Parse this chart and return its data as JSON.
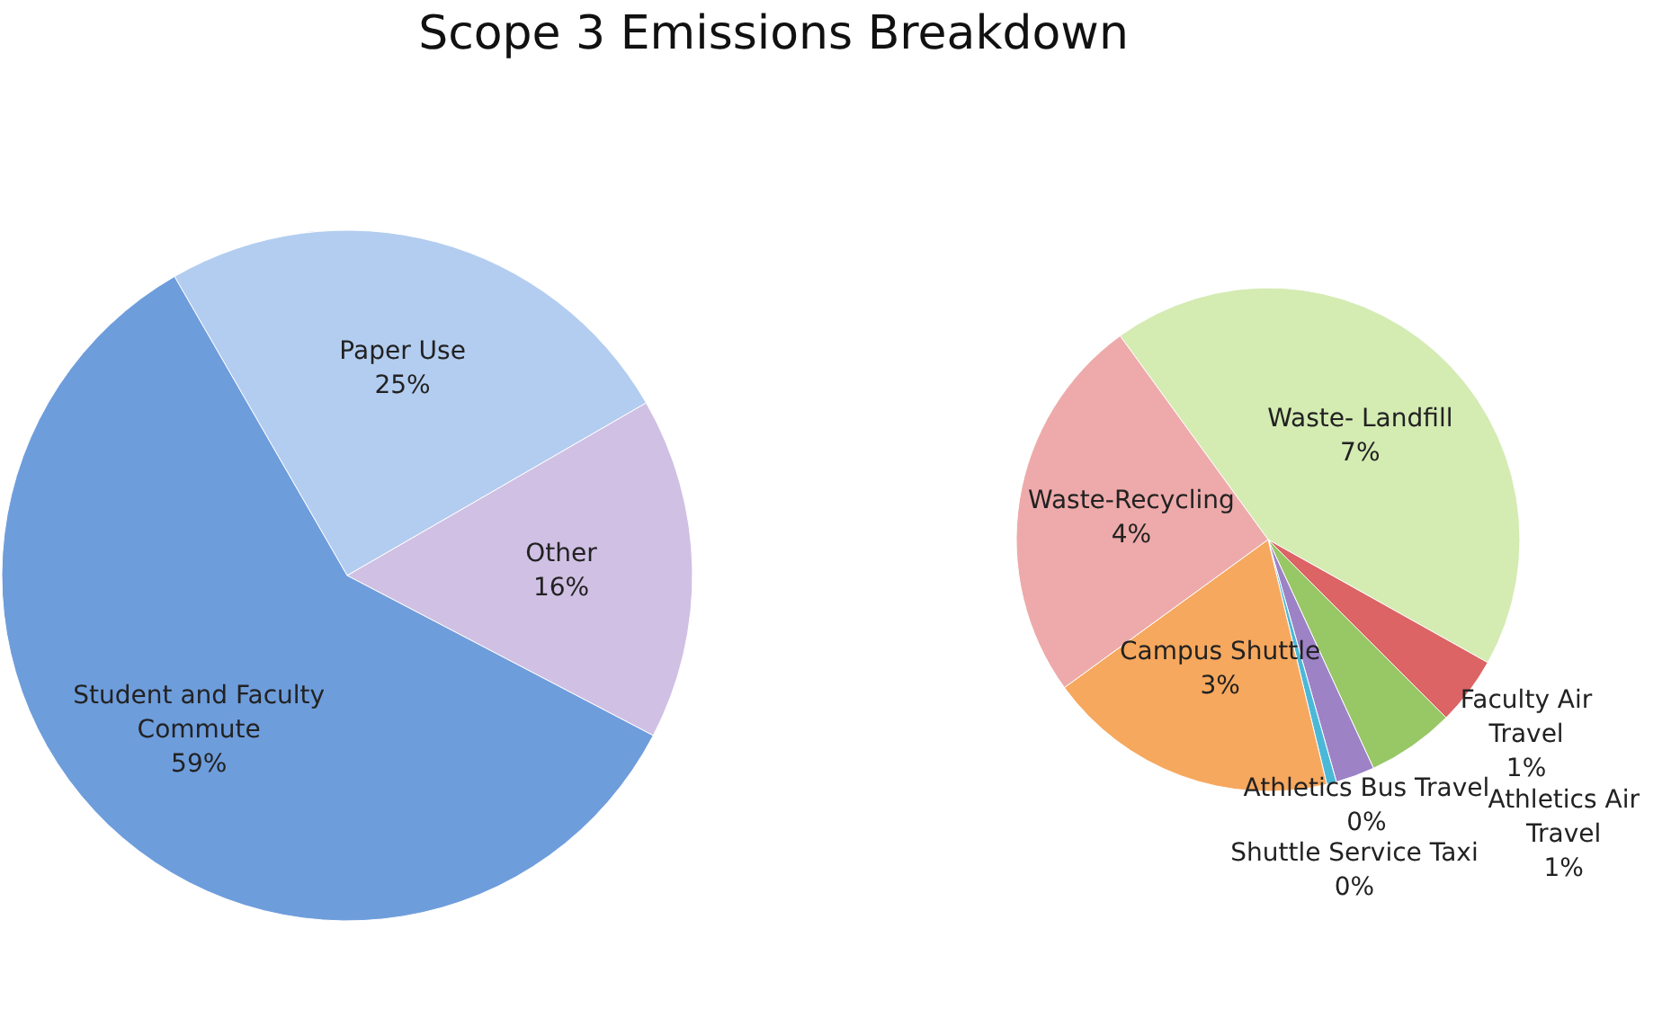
{
  "chart_data": [
    {
      "type": "pie",
      "title": "Scope 3 Emissions Breakdown",
      "categories": [
        "Paper Use",
        "Other",
        "Student and Faculty Commute"
      ],
      "values": [
        25,
        16,
        59
      ],
      "value_labels": [
        "25%",
        "16%",
        "59%"
      ],
      "colors": [
        "#b3cdf0",
        "#d0c0e4",
        "#6e9ddc"
      ]
    },
    {
      "type": "pie",
      "categories": [
        "Waste- Landfill",
        "Faculty Air Travel",
        "Athletics Air Travel",
        "Athletics Bus Travel",
        "Shuttle Service Taxi",
        "Campus Shuttle",
        "Waste-Recycling"
      ],
      "values": [
        6.9,
        0.7,
        0.9,
        0.4,
        0.1,
        3,
        4
      ],
      "value_labels": [
        "7%",
        "1%",
        "1%",
        "0%",
        "0%",
        "3%",
        "4%"
      ],
      "colors": [
        "#d4ebb2",
        "#dc6464",
        "#98c766",
        "#9d82c6",
        "#4cb8d8",
        "#f6a85e",
        "#eeaaaa"
      ]
    }
  ]
}
